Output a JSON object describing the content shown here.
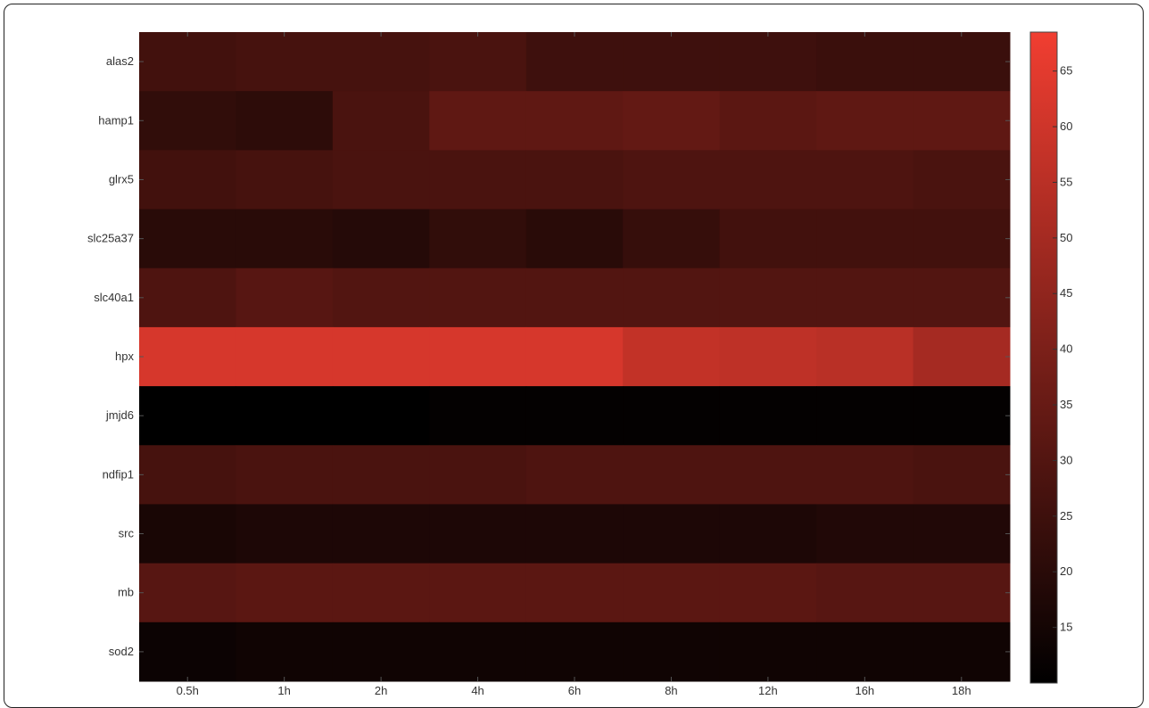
{
  "chart_data": {
    "type": "heatmap",
    "x_categories": [
      "0.5h",
      "1h",
      "2h",
      "4h",
      "6h",
      "8h",
      "12h",
      "16h",
      "18h"
    ],
    "y_categories": [
      "alas2",
      "hamp1",
      "glrx5",
      "slc25a37",
      "slc40a1",
      "hpx",
      "jmjd6",
      "ndfip1",
      "src",
      "mb",
      "sod2"
    ],
    "values": [
      [
        26,
        27,
        27,
        28,
        25,
        25,
        25,
        24,
        24
      ],
      [
        22,
        21,
        28,
        33,
        33,
        34,
        32,
        33,
        33
      ],
      [
        26,
        27,
        28,
        28,
        28,
        29,
        29,
        29,
        28
      ],
      [
        20,
        20,
        19,
        22,
        20,
        23,
        26,
        26,
        26
      ],
      [
        29,
        31,
        30,
        30,
        30,
        30,
        30,
        30,
        30
      ],
      [
        62,
        62,
        62,
        62,
        62,
        57,
        56,
        55,
        50
      ],
      [
        10,
        10,
        10,
        11,
        11,
        11,
        11,
        11,
        11
      ],
      [
        27,
        28,
        28,
        28,
        29,
        29,
        29,
        29,
        28
      ],
      [
        16,
        17,
        17,
        17,
        17,
        17,
        17,
        18,
        18
      ],
      [
        31,
        32,
        32,
        32,
        32,
        32,
        32,
        31,
        31
      ],
      [
        13,
        14,
        14,
        14,
        14,
        14,
        14,
        14,
        14
      ]
    ],
    "colorbar": {
      "min": 10,
      "max": 68.5,
      "ticks": [
        15,
        20,
        25,
        30,
        35,
        40,
        45,
        50,
        55,
        60,
        65
      ],
      "colormap": [
        "#000000",
        "#f13e31"
      ]
    },
    "title": "",
    "xlabel": "",
    "ylabel": ""
  }
}
